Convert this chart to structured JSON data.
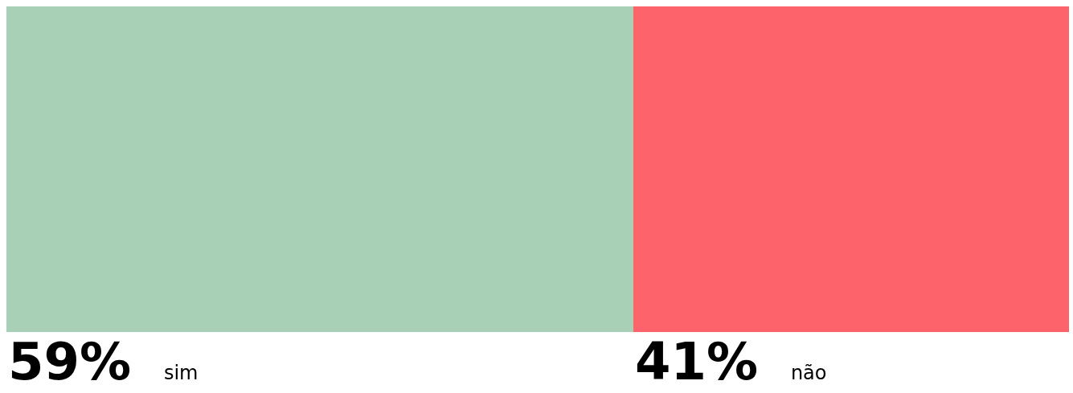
{
  "chart_data": {
    "type": "bar",
    "orientation": "horizontal",
    "stacked": true,
    "categories": [
      null
    ],
    "series": [
      {
        "name": "sim",
        "color": "#a8d0b6",
        "values": [
          59
        ],
        "value_labels": [
          "59%"
        ]
      },
      {
        "name": "não",
        "color": "#fc636b",
        "values": [
          41
        ],
        "value_labels": [
          "41%"
        ]
      }
    ]
  }
}
